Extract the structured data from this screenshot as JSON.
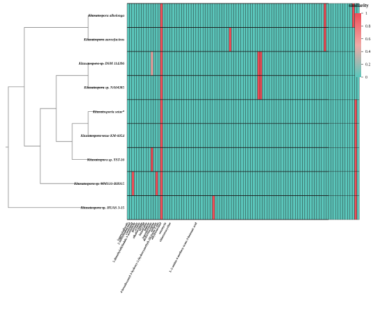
{
  "chart_data": {
    "type": "heatmap",
    "rows": [
      "Kitasatospora albolonga",
      "Kitasatospora aureofaciens",
      "Kitasatospora sp. DSM 114396",
      "Kitasatospora sp. NA04385",
      "Kitasatosporia setae*",
      "Kitasatospora setae KM-6054",
      "Kitasatospora sp. YST-16",
      "Kitasatospora sp. MMS16-BH015",
      "Kitasatospora sp. HUAS 3-15"
    ],
    "columns": [
      "lagmysiadiazole",
      "2-methylisoborneol",
      "carotenoid",
      "5-dimethylallylindole-3-acetonitrile",
      "geosmin",
      "ectoine",
      "albaflavenone",
      "SF2768",
      "kitasetaline",
      "hopene",
      "isorenieratene",
      "desferrioxamine",
      "melanin",
      "4-hexadecanoyl-3-hydroxy-2-(hydroxymethyl)-2H-furan-5-one",
      "alkylresorcinol",
      "",
      "setamycin",
      "",
      "chlortetracycline",
      "",
      "",
      "",
      "",
      "",
      "",
      "",
      "",
      "",
      "",
      "L-2-amino-4-methoxy-trans-3-butenoic acid",
      "",
      "",
      "",
      "",
      "",
      "",
      "",
      "",
      "",
      "",
      "",
      "",
      "",
      "",
      "",
      "",
      "",
      "",
      "",
      "",
      "",
      "",
      "",
      "",
      "",
      "",
      "",
      "",
      "",
      "",
      "",
      "",
      "",
      "",
      "",
      "",
      "",
      "",
      "",
      "",
      "",
      "",
      "",
      "",
      "",
      "",
      "",
      "",
      "",
      "",
      "",
      "",
      "",
      "",
      ""
    ],
    "values": [
      [
        0,
        0,
        0,
        0,
        0,
        0,
        0,
        0,
        0,
        0,
        0,
        0,
        0,
        0,
        1,
        0,
        0,
        0,
        0,
        0,
        0,
        0,
        0,
        0,
        0,
        0,
        0,
        0,
        0,
        0,
        0,
        0,
        0,
        0,
        0,
        0,
        0,
        0,
        0,
        0,
        0,
        0,
        0,
        0,
        0,
        0,
        0,
        0,
        0,
        0,
        0,
        0,
        0,
        0,
        0,
        0,
        0,
        0,
        0,
        0,
        0,
        0,
        0,
        0,
        0,
        0,
        0,
        0,
        0,
        0,
        0,
        0,
        0,
        0,
        0,
        0,
        0,
        0,
        0,
        0,
        0,
        0,
        0,
        1,
        0,
        0,
        0,
        0,
        0,
        0,
        0,
        0,
        0,
        0,
        0,
        1,
        0,
        0
      ],
      [
        0,
        0,
        0,
        0,
        0,
        0,
        0,
        0,
        0,
        0,
        0,
        0,
        0,
        0,
        1,
        0,
        0,
        0,
        0,
        0,
        0,
        0,
        0,
        0,
        0,
        0,
        0,
        0,
        0,
        0,
        0,
        0,
        0,
        0,
        0,
        0,
        0,
        0,
        0,
        0,
        0,
        0,
        0,
        1,
        0,
        0,
        0,
        0,
        0,
        0,
        0,
        0,
        0,
        0,
        0,
        0,
        0,
        0,
        0,
        0,
        0,
        0,
        0,
        0,
        0,
        0,
        0,
        0,
        0,
        0,
        0,
        0,
        0,
        0,
        0,
        0,
        0,
        0,
        0,
        0,
        0,
        0,
        0,
        1,
        0,
        0,
        0,
        0,
        0,
        0,
        0,
        0,
        0,
        0,
        0,
        0,
        0,
        0
      ],
      [
        0,
        0,
        0,
        0,
        0,
        0,
        0,
        0,
        0,
        0,
        0.5,
        0,
        0,
        0,
        1,
        0,
        0,
        0,
        0,
        0,
        0,
        0,
        0,
        0,
        0,
        0,
        0,
        0,
        0,
        0,
        0,
        0,
        0,
        0,
        0,
        0,
        0,
        0,
        0,
        0,
        0,
        0,
        0,
        0,
        0,
        0,
        0,
        0,
        0,
        0,
        0,
        0,
        0,
        0,
        0,
        1,
        1,
        0,
        0,
        0,
        0,
        0,
        0,
        0,
        0,
        0,
        0,
        0,
        0,
        0,
        0,
        0,
        0,
        0,
        0,
        0,
        0,
        0,
        0,
        0,
        0,
        0,
        0,
        0,
        0,
        0,
        0,
        0,
        0,
        0,
        0,
        0,
        0,
        0,
        0,
        0,
        0,
        0
      ],
      [
        0,
        0,
        0,
        0,
        0,
        0,
        0,
        0,
        0,
        0,
        0,
        0,
        0,
        0,
        1,
        0,
        0,
        0,
        0,
        0,
        0,
        0,
        0,
        0,
        0,
        0,
        0,
        0,
        0,
        0,
        0,
        0,
        0,
        0,
        0,
        0,
        0,
        0,
        0,
        0,
        0,
        0,
        0,
        0,
        0,
        0,
        0,
        0,
        0,
        0,
        0,
        0,
        0,
        0,
        0,
        1,
        1,
        0,
        0,
        0,
        0,
        0,
        0,
        0,
        0,
        0,
        0,
        0,
        0,
        0,
        0,
        0,
        0,
        0,
        0,
        0,
        0,
        0,
        0,
        0,
        0,
        0,
        0,
        0,
        0,
        0,
        0,
        0,
        0,
        0,
        0,
        0,
        0,
        0,
        0,
        0,
        0,
        0
      ],
      [
        0,
        0,
        0,
        0,
        0,
        0,
        0,
        0,
        0,
        0,
        0,
        0,
        0,
        0,
        1,
        0,
        0,
        0,
        0,
        0,
        0,
        0,
        0,
        0,
        0,
        0,
        0,
        0,
        0,
        0,
        0,
        0,
        0,
        0,
        0,
        0,
        0,
        0,
        0,
        0,
        0,
        0,
        0,
        0,
        0,
        0,
        0,
        0,
        0,
        0,
        0,
        0,
        0,
        0,
        0,
        0,
        0,
        0,
        0,
        0,
        0,
        0,
        0,
        0,
        0,
        0,
        0,
        0,
        0,
        0,
        0,
        0,
        0,
        0,
        0,
        0,
        0,
        0,
        0,
        0,
        0,
        0,
        0,
        0,
        0,
        0,
        0,
        0,
        0,
        0,
        0,
        0,
        0,
        0,
        0,
        0,
        1,
        0
      ],
      [
        0,
        0,
        0,
        0,
        0,
        0,
        0,
        0,
        0,
        0,
        0,
        0,
        0,
        0,
        1,
        0,
        0,
        0,
        0,
        0,
        0,
        0,
        0,
        0,
        0,
        0,
        0,
        0,
        0,
        0,
        0,
        0,
        0,
        0,
        0,
        0,
        0,
        0,
        0,
        0,
        0,
        0,
        0,
        0,
        0,
        0,
        0,
        0,
        0,
        0,
        0,
        0,
        0,
        0,
        0,
        0,
        0,
        0,
        0,
        0,
        0,
        0,
        0,
        0,
        0,
        0,
        0,
        0,
        0,
        0,
        0,
        0,
        0,
        0,
        0,
        0,
        0,
        0,
        0,
        0,
        0,
        0,
        0,
        0,
        0,
        0,
        0,
        0,
        0,
        0,
        0,
        0,
        0,
        0,
        0,
        0,
        1,
        0
      ],
      [
        0,
        0,
        0,
        0,
        0,
        0,
        0,
        0,
        0,
        0,
        1,
        0,
        0,
        0,
        1,
        0,
        0,
        0,
        0,
        0,
        0,
        0,
        0,
        0,
        0,
        0,
        0,
        0,
        0,
        0,
        0,
        0,
        0,
        0,
        0,
        0,
        0,
        0,
        0,
        0,
        0,
        0,
        0,
        0,
        0,
        0,
        0,
        0,
        0,
        0,
        0,
        0,
        0,
        0,
        0,
        0,
        0,
        0,
        0,
        0,
        0,
        0,
        0,
        0,
        0,
        0,
        0,
        0,
        0,
        0,
        0,
        0,
        0,
        0,
        0,
        0,
        0,
        0,
        0,
        0,
        0,
        0,
        0,
        0,
        0,
        0,
        0,
        0,
        0,
        0,
        0,
        0,
        0,
        0,
        0,
        0,
        1,
        0
      ],
      [
        0,
        0,
        1,
        0,
        0,
        0,
        0,
        0,
        0,
        0,
        0,
        0,
        1,
        0,
        1,
        0,
        0,
        0,
        0,
        0,
        0,
        0,
        0,
        0,
        0,
        0,
        0,
        0,
        0,
        0,
        0,
        0,
        0,
        0,
        0,
        0,
        0,
        0,
        0,
        0,
        0,
        0,
        0,
        0,
        0,
        0,
        0,
        0,
        0,
        0,
        0,
        0,
        0,
        0,
        0,
        0,
        0,
        0,
        0,
        0,
        0,
        0,
        0,
        0,
        0,
        0,
        0,
        0,
        0,
        0,
        0,
        0,
        0,
        0,
        0,
        0,
        0,
        0,
        0,
        0,
        0,
        0,
        0,
        0,
        0,
        0,
        0,
        0,
        0,
        0,
        0,
        0,
        0,
        0,
        0,
        0,
        1,
        0
      ],
      [
        0,
        0,
        0,
        0,
        0,
        0,
        0,
        0,
        0,
        0,
        0,
        0,
        0,
        0,
        1,
        0,
        0,
        0,
        0,
        0,
        0,
        0,
        0,
        0,
        0,
        0,
        0,
        0,
        0,
        0,
        0,
        0,
        0,
        0,
        0,
        0,
        1,
        0,
        0,
        0,
        0,
        0,
        0,
        0,
        0,
        0,
        0,
        0,
        0,
        0,
        0,
        0,
        0,
        0,
        0,
        0,
        0,
        0,
        0,
        0,
        0,
        0,
        0,
        0,
        0,
        0,
        0,
        0,
        0,
        0,
        0,
        0,
        0,
        0,
        0,
        0,
        0,
        0,
        0,
        0,
        0,
        0,
        0,
        0,
        0,
        0,
        0,
        0,
        0,
        0,
        0,
        0,
        0,
        0,
        0,
        0,
        1,
        0
      ]
    ],
    "dendrogram": [
      [
        4,
        5
      ],
      [
        2,
        3
      ],
      [
        9,
        6
      ],
      [
        10,
        11
      ],
      [
        12,
        7
      ],
      [
        0,
        1
      ],
      [
        14,
        13
      ],
      [
        15,
        8
      ]
    ],
    "legend_title": "similarity",
    "legend_ticks": [
      "1",
      "0.8",
      "0.6",
      "0.4",
      "0.2",
      "0"
    ],
    "colors": {
      "low": "#5bc6bb",
      "mid": "#f0a9a6",
      "high": "#ee4d57",
      "grid": "#1a1a1a",
      "text": "#111111",
      "tree": "#888888"
    }
  }
}
